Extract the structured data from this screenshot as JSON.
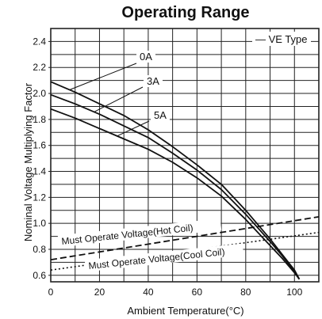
{
  "chart_data": {
    "type": "line",
    "title": "Operating Range",
    "xlabel": "Ambient Temperature(°C)",
    "ylabel": "Nominal Voltage Multiplying Factor",
    "xlim": [
      0,
      110
    ],
    "ylim": [
      0.55,
      2.5
    ],
    "x_ticks": [
      0,
      20,
      40,
      60,
      80,
      100
    ],
    "y_ticks": [
      0.6,
      0.8,
      1.0,
      1.2,
      1.4,
      1.6,
      1.8,
      2.0,
      2.2,
      2.4
    ],
    "y_tick_labels": [
      "0.6",
      "0.8",
      "1.0",
      "1.2",
      "1.4",
      "1.6",
      "1.8",
      "2.0",
      "2.2",
      "2.4"
    ],
    "grid": true,
    "type_label": "VE Type",
    "series": [
      {
        "name": "0A",
        "style": "solid",
        "x": [
          0,
          10,
          20,
          30,
          40,
          50,
          60,
          70,
          80,
          90,
          95,
          100,
          102
        ],
        "y": [
          2.09,
          2.01,
          1.92,
          1.83,
          1.72,
          1.59,
          1.45,
          1.3,
          1.1,
          0.88,
          0.76,
          0.64,
          0.57
        ]
      },
      {
        "name": "3A",
        "style": "solid",
        "x": [
          0,
          10,
          20,
          30,
          40,
          50,
          60,
          70,
          80,
          90,
          95,
          100,
          102
        ],
        "y": [
          1.99,
          1.92,
          1.84,
          1.75,
          1.66,
          1.54,
          1.41,
          1.26,
          1.07,
          0.86,
          0.75,
          0.63,
          0.57
        ]
      },
      {
        "name": "5A",
        "style": "solid",
        "x": [
          0,
          10,
          20,
          30,
          40,
          50,
          60,
          70,
          80,
          90,
          95,
          100,
          102
        ],
        "y": [
          1.88,
          1.81,
          1.73,
          1.65,
          1.57,
          1.47,
          1.35,
          1.21,
          1.03,
          0.83,
          0.73,
          0.62,
          0.57
        ]
      },
      {
        "name": "Must Operate Voltage(Hot Coil)",
        "style": "dashed",
        "x": [
          0,
          110
        ],
        "y": [
          0.72,
          1.05
        ]
      },
      {
        "name": "Must Operate Voltage(Cool Coil)",
        "style": "dotted",
        "x": [
          0,
          110
        ],
        "y": [
          0.64,
          0.93
        ]
      }
    ],
    "colors": {
      "line": "#111111",
      "grid": "#222222",
      "background": "#ffffff"
    }
  }
}
